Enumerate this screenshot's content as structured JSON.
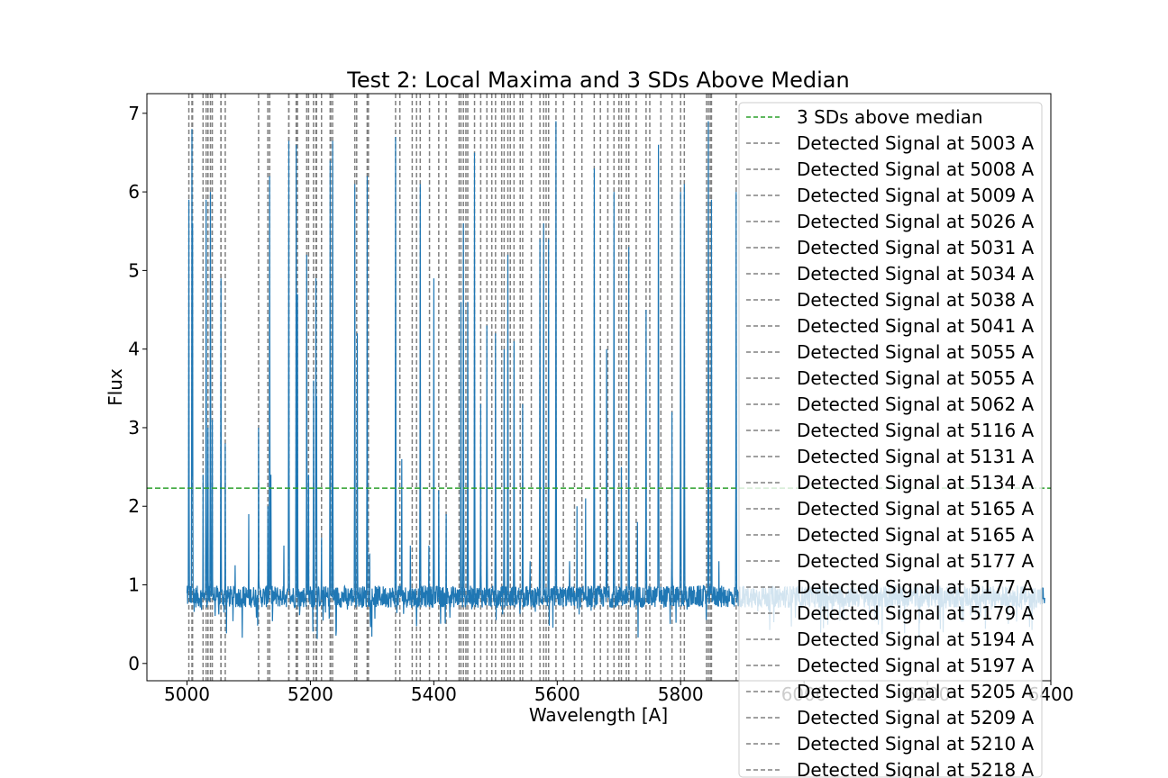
{
  "chart_data": {
    "type": "line",
    "title": "Test 2: Local Maxima and 3 SDs Above Median",
    "xlabel": "Wavelength [A]",
    "ylabel": "Flux",
    "xlim": [
      4935,
      6400
    ],
    "ylim": [
      -0.22,
      7.25
    ],
    "x_ticks": [
      5000,
      5200,
      5400,
      5600,
      5800,
      6000,
      6200,
      6400
    ],
    "y_ticks": [
      0,
      1,
      2,
      3,
      4,
      5,
      6,
      7
    ],
    "grid": false,
    "legend_placement": "upper-right, extending below the axes",
    "colors": {
      "spectrum": "#1f77b4",
      "threshold": "#2ca02c",
      "detections": "#808080"
    },
    "spectrum": {
      "x_range": [
        5000,
        6390
      ],
      "baseline": 0.85,
      "peaks": [
        [
          5003,
          5.9
        ],
        [
          5008,
          6.8
        ],
        [
          5009,
          5.6
        ],
        [
          5026,
          2.4
        ],
        [
          5031,
          5.9
        ],
        [
          5034,
          3.0
        ],
        [
          5038,
          6.0
        ],
        [
          5041,
          3.1
        ],
        [
          5055,
          4.9
        ],
        [
          5062,
          2.8
        ],
        [
          5078,
          1.25
        ],
        [
          5100,
          1.9
        ],
        [
          5116,
          3.0
        ],
        [
          5131,
          2.0
        ],
        [
          5134,
          6.2
        ],
        [
          5136,
          2.4
        ],
        [
          5157,
          1.5
        ],
        [
          5165,
          6.65
        ],
        [
          5177,
          6.6
        ],
        [
          5179,
          4.7
        ],
        [
          5194,
          5.2
        ],
        [
          5197,
          2.4
        ],
        [
          5205,
          3.6
        ],
        [
          5209,
          4.9
        ],
        [
          5210,
          3.4
        ],
        [
          5218,
          1.6
        ],
        [
          5232,
          6.4
        ],
        [
          5236,
          6.65
        ],
        [
          5272,
          6.1
        ],
        [
          5276,
          4.2
        ],
        [
          5292,
          6.2
        ],
        [
          5296,
          1.4
        ],
        [
          5338,
          6.7
        ],
        [
          5348,
          2.6
        ],
        [
          5362,
          1.5
        ],
        [
          5378,
          6.1
        ],
        [
          5392,
          1.5
        ],
        [
          5400,
          4.9
        ],
        [
          5408,
          2.2
        ],
        [
          5420,
          1.9
        ],
        [
          5444,
          4.6
        ],
        [
          5448,
          5.6
        ],
        [
          5455,
          4.6
        ],
        [
          5466,
          6.5
        ],
        [
          5476,
          3.3
        ],
        [
          5486,
          4.3
        ],
        [
          5500,
          4.2
        ],
        [
          5514,
          4.0
        ],
        [
          5520,
          5.2
        ],
        [
          5530,
          4.1
        ],
        [
          5544,
          3.3
        ],
        [
          5556,
          1.3
        ],
        [
          5572,
          5.4
        ],
        [
          5578,
          5.6
        ],
        [
          5586,
          5.4
        ],
        [
          5598,
          6.9
        ],
        [
          5620,
          1.3
        ],
        [
          5632,
          2.0
        ],
        [
          5646,
          2.1
        ],
        [
          5660,
          6.3
        ],
        [
          5680,
          4.0
        ],
        [
          5692,
          6.0
        ],
        [
          5704,
          2.5
        ],
        [
          5716,
          5.3
        ],
        [
          5730,
          1.8
        ],
        [
          5744,
          4.5
        ],
        [
          5764,
          6.6
        ],
        [
          5786,
          3.2
        ],
        [
          5800,
          6.0
        ],
        [
          5806,
          6.1
        ],
        [
          5845,
          6.9
        ],
        [
          5850,
          5.9
        ],
        [
          5862,
          1.3
        ],
        [
          5890,
          6.0
        ]
      ]
    },
    "series": [
      {
        "name": "3 SDs above median",
        "style": "dashed",
        "y": 2.23
      }
    ],
    "detected_signals": [
      5003,
      5008,
      5009,
      5026,
      5031,
      5034,
      5038,
      5041,
      5055,
      5055,
      5062,
      5116,
      5131,
      5134,
      5165,
      5165,
      5177,
      5177,
      5179,
      5194,
      5197,
      5205,
      5209,
      5210,
      5218,
      5232,
      5233,
      5236,
      5272,
      5275,
      5292,
      5294,
      5338,
      5345,
      5365,
      5372,
      5378,
      5393,
      5408,
      5420,
      5441,
      5444,
      5448,
      5452,
      5455,
      5466,
      5476,
      5486,
      5494,
      5500,
      5510,
      5514,
      5520,
      5524,
      5530,
      5540,
      5544,
      5558,
      5572,
      5578,
      5582,
      5586,
      5598,
      5610,
      5628,
      5640,
      5660,
      5670,
      5682,
      5692,
      5700,
      5704,
      5712,
      5716,
      5728,
      5744,
      5750,
      5768,
      5786,
      5800,
      5806,
      5842,
      5845,
      5848,
      5850,
      5890
    ],
    "legend_entries": [
      {
        "label": "3 SDs above median",
        "style": "dashed-green"
      },
      {
        "label": "Detected Signal at 5003 A",
        "style": "dashed-gray"
      },
      {
        "label": "Detected Signal at 5008 A",
        "style": "dashed-gray"
      },
      {
        "label": "Detected Signal at 5009 A",
        "style": "dashed-gray"
      },
      {
        "label": "Detected Signal at 5026 A",
        "style": "dashed-gray"
      },
      {
        "label": "Detected Signal at 5031 A",
        "style": "dashed-gray"
      },
      {
        "label": "Detected Signal at 5034 A",
        "style": "dashed-gray"
      },
      {
        "label": "Detected Signal at 5038 A",
        "style": "dashed-gray"
      },
      {
        "label": "Detected Signal at 5041 A",
        "style": "dashed-gray"
      },
      {
        "label": "Detected Signal at 5055 A",
        "style": "dashed-gray"
      },
      {
        "label": "Detected Signal at 5055 A",
        "style": "dashed-gray"
      },
      {
        "label": "Detected Signal at 5062 A",
        "style": "dashed-gray"
      },
      {
        "label": "Detected Signal at 5116 A",
        "style": "dashed-gray"
      },
      {
        "label": "Detected Signal at 5131 A",
        "style": "dashed-gray"
      },
      {
        "label": "Detected Signal at 5134 A",
        "style": "dashed-gray"
      },
      {
        "label": "Detected Signal at 5165 A",
        "style": "dashed-gray"
      },
      {
        "label": "Detected Signal at 5165 A",
        "style": "dashed-gray"
      },
      {
        "label": "Detected Signal at 5177 A",
        "style": "dashed-gray"
      },
      {
        "label": "Detected Signal at 5177 A",
        "style": "dashed-gray"
      },
      {
        "label": "Detected Signal at 5179 A",
        "style": "dashed-gray"
      },
      {
        "label": "Detected Signal at 5194 A",
        "style": "dashed-gray"
      },
      {
        "label": "Detected Signal at 5197 A",
        "style": "dashed-gray"
      },
      {
        "label": "Detected Signal at 5205 A",
        "style": "dashed-gray"
      },
      {
        "label": "Detected Signal at 5209 A",
        "style": "dashed-gray"
      },
      {
        "label": "Detected Signal at 5210 A",
        "style": "dashed-gray"
      },
      {
        "label": "Detected Signal at 5218 A",
        "style": "dashed-gray"
      }
    ]
  }
}
